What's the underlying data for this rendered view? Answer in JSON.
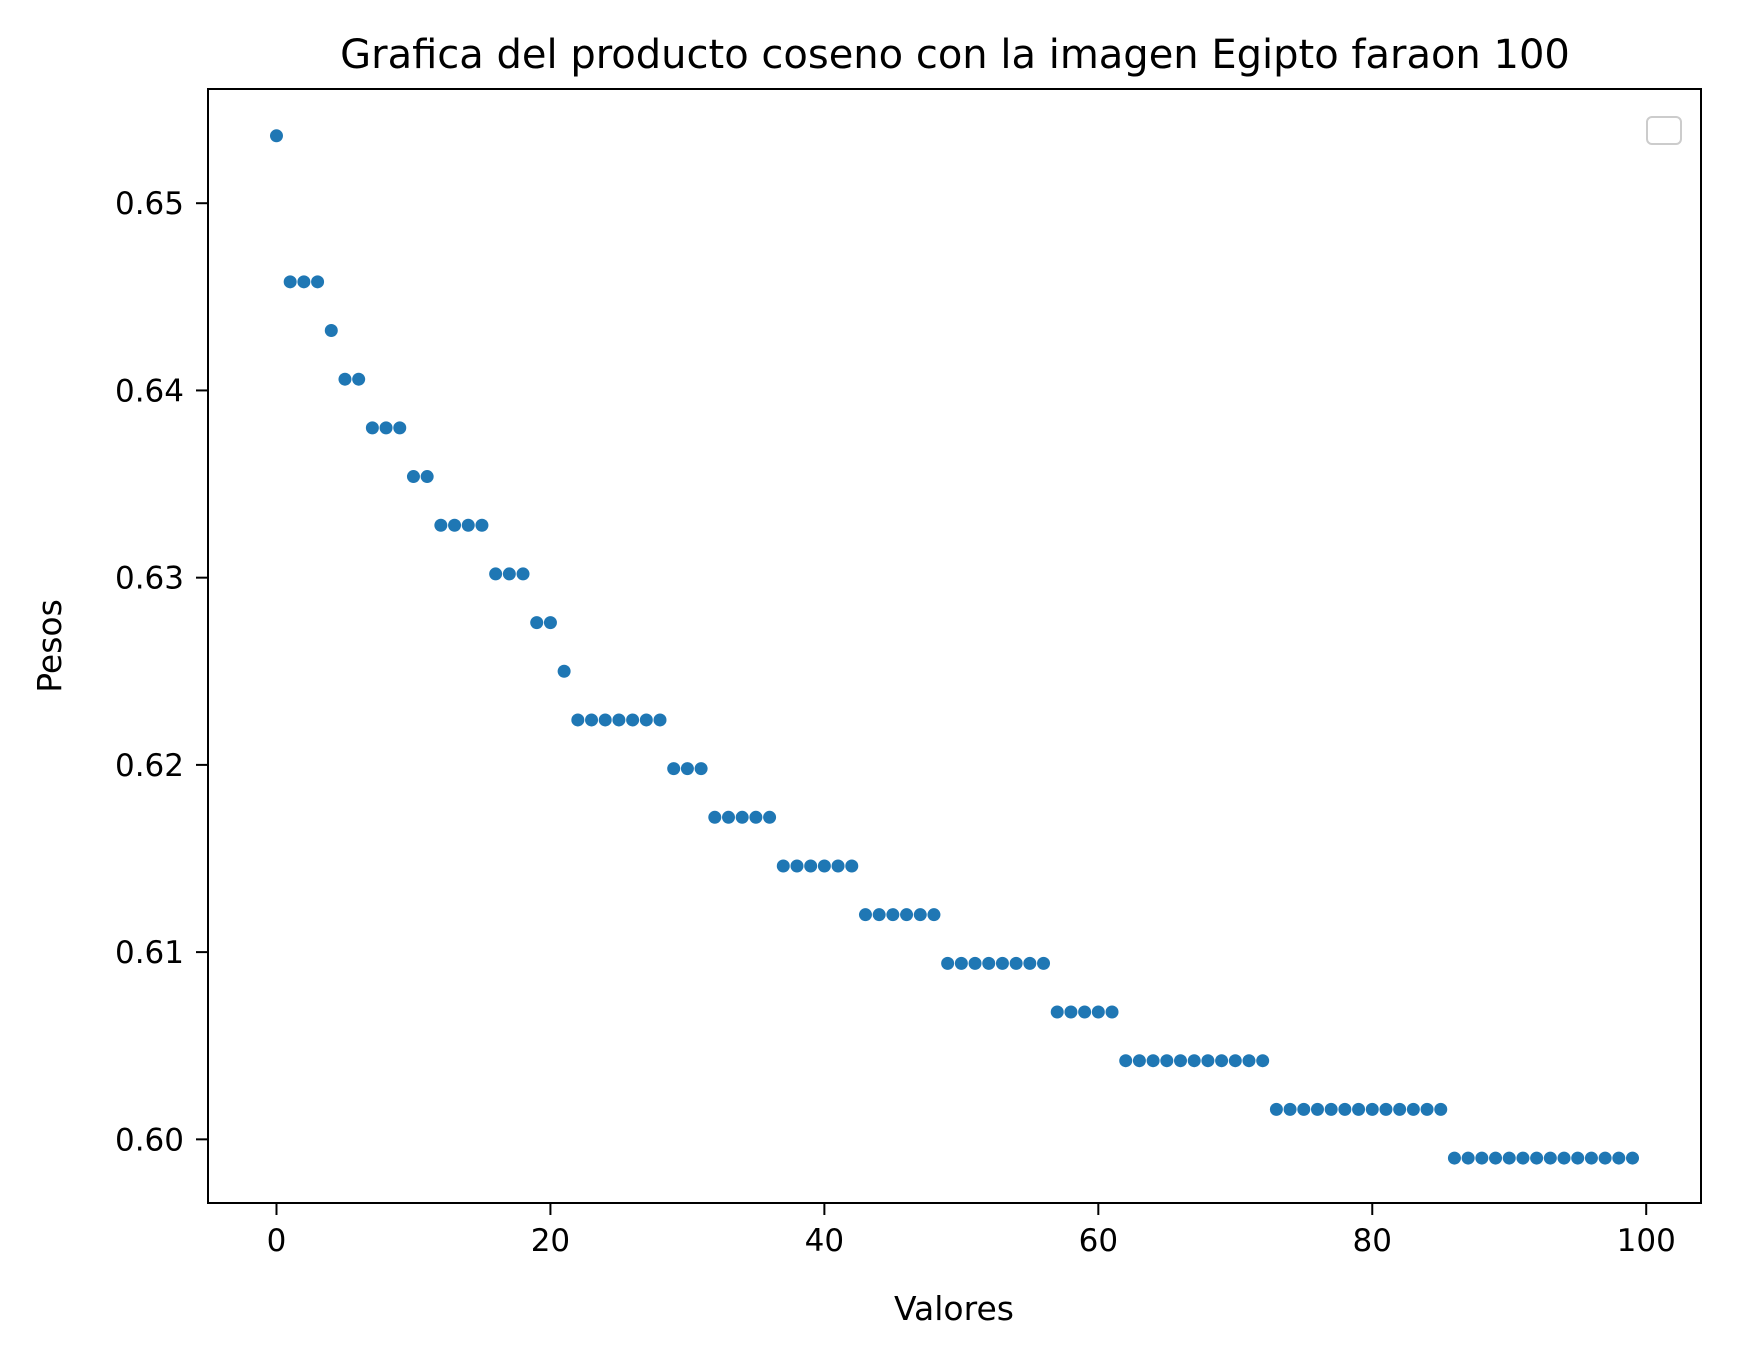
{
  "chart_data": {
    "type": "scatter",
    "title": "Grafica del producto coseno con la imagen Egipto faraon 100",
    "xlabel": "Valores",
    "ylabel": "Pesos",
    "xlim": [
      -5,
      104
    ],
    "ylim": [
      0.5966,
      0.6561
    ],
    "xticks": [
      0,
      20,
      40,
      60,
      80,
      100
    ],
    "xtick_labels": [
      "0",
      "20",
      "40",
      "60",
      "80",
      "100"
    ],
    "yticks": [
      0.6,
      0.61,
      0.62,
      0.63,
      0.64,
      0.65
    ],
    "ytick_labels": [
      "0.60",
      "0.61",
      "0.62",
      "0.63",
      "0.64",
      "0.65"
    ],
    "grid": false,
    "legend": {
      "placement": "upper-right",
      "entries": []
    },
    "marker_color": "#1f77b4",
    "series": [
      {
        "x": [
          0,
          1,
          2,
          3,
          4,
          5,
          6,
          7,
          8,
          9,
          10,
          11,
          12,
          13,
          14,
          15,
          16,
          17,
          18,
          19,
          20,
          21,
          22,
          23,
          24,
          25,
          26,
          27,
          28,
          29,
          30,
          31,
          32,
          33,
          34,
          35,
          36,
          37,
          38,
          39,
          40,
          41,
          42,
          43,
          44,
          45,
          46,
          47,
          48,
          49,
          50,
          51,
          52,
          53,
          54,
          55,
          56,
          57,
          58,
          59,
          60,
          61,
          62,
          63,
          64,
          65,
          66,
          67,
          68,
          69,
          70,
          71,
          72,
          73,
          74,
          75,
          76,
          77,
          78,
          79,
          80,
          81,
          82,
          83,
          84,
          85,
          86,
          87,
          88,
          89,
          90,
          91,
          92,
          93,
          94,
          95,
          96,
          97,
          98,
          99
        ],
        "y": [
          0.6536,
          0.6458,
          0.6458,
          0.6458,
          0.6432,
          0.6406,
          0.6406,
          0.638,
          0.638,
          0.638,
          0.6354,
          0.6354,
          0.6328,
          0.6328,
          0.6328,
          0.6328,
          0.6302,
          0.6302,
          0.6302,
          0.6276,
          0.6276,
          0.625,
          0.6224,
          0.6224,
          0.6224,
          0.6224,
          0.6224,
          0.6224,
          0.6224,
          0.6198,
          0.6198,
          0.6198,
          0.6172,
          0.6172,
          0.6172,
          0.6172,
          0.6172,
          0.6146,
          0.6146,
          0.6146,
          0.6146,
          0.6146,
          0.6146,
          0.612,
          0.612,
          0.612,
          0.612,
          0.612,
          0.612,
          0.6094,
          0.6094,
          0.6094,
          0.6094,
          0.6094,
          0.6094,
          0.6094,
          0.6094,
          0.6068,
          0.6068,
          0.6068,
          0.6068,
          0.6068,
          0.6042,
          0.6042,
          0.6042,
          0.6042,
          0.6042,
          0.6042,
          0.6042,
          0.6042,
          0.6042,
          0.6042,
          0.6042,
          0.6016,
          0.6016,
          0.6016,
          0.6016,
          0.6016,
          0.6016,
          0.6016,
          0.6016,
          0.6016,
          0.6016,
          0.6016,
          0.6016,
          0.6016,
          0.599,
          0.599,
          0.599,
          0.599,
          0.599,
          0.599,
          0.599,
          0.599,
          0.599,
          0.599,
          0.599,
          0.599,
          0.599,
          0.599
        ]
      }
    ]
  }
}
